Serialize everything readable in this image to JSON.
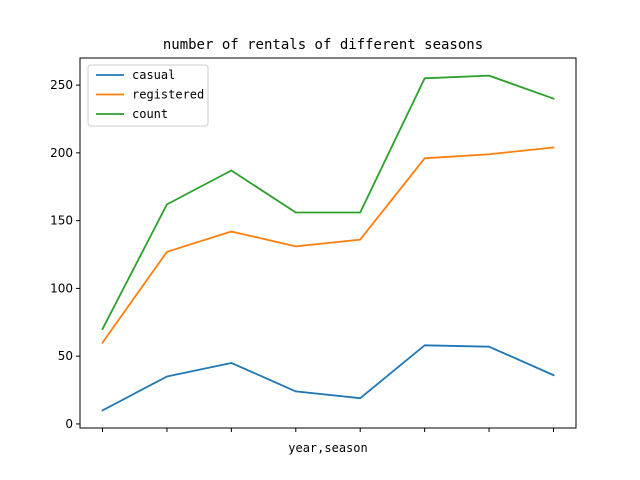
{
  "chart_data": {
    "type": "line",
    "title": "number of rentals of different seasons",
    "xlabel": "year,season",
    "ylabel": "",
    "x_count": 8,
    "x_tick_labels": [
      "",
      "",
      "",
      "",
      "",
      "",
      "",
      ""
    ],
    "ylim": [
      -3,
      270
    ],
    "yticks": [
      0,
      50,
      100,
      150,
      200,
      250
    ],
    "grid": false,
    "legend_position": "top-left",
    "series": [
      {
        "name": "casual",
        "color": "#1f77b4",
        "values": [
          10,
          35,
          45,
          24,
          19,
          58,
          57,
          36
        ]
      },
      {
        "name": "registered",
        "color": "#ff7f0e",
        "values": [
          60,
          127,
          142,
          131,
          136,
          196,
          199,
          204
        ]
      },
      {
        "name": "count",
        "color": "#2ca02c",
        "values": [
          70,
          162,
          187,
          156,
          156,
          255,
          257,
          240
        ]
      }
    ]
  }
}
